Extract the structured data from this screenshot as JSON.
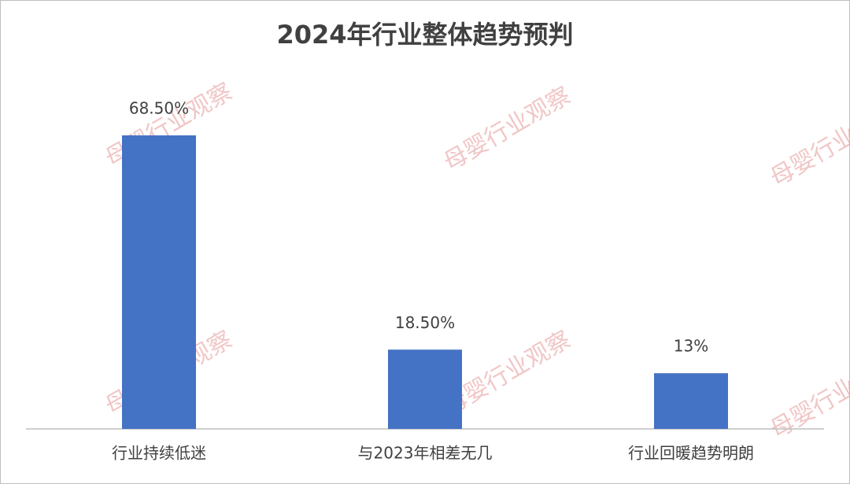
{
  "chart_data": {
    "type": "bar",
    "title": "2024年行业整体趋势预判",
    "categories": [
      "行业持续低迷",
      "与2023年相差无几",
      "行业回暖趋势明朗"
    ],
    "values": [
      68.5,
      18.5,
      13
    ],
    "value_labels": [
      "68.50%",
      "18.50%",
      "13%"
    ],
    "color": "#4472c4",
    "watermark": "母婴行业观察"
  }
}
